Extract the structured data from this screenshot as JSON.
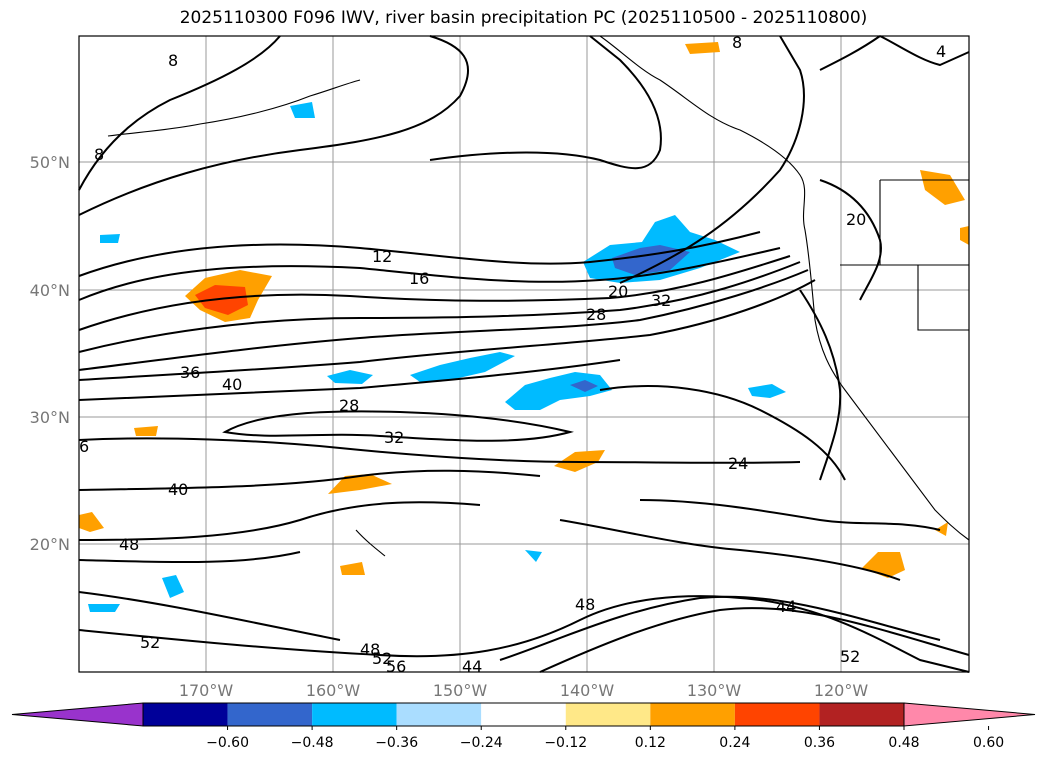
{
  "title": "2025110300 F096 IWV, river basin precipitation PC (2025110500 - 2025110800)",
  "lat_labels": [
    "50°N",
    "40°N",
    "30°N",
    "20°N"
  ],
  "lon_labels": [
    "170°W",
    "160°W",
    "150°W",
    "140°W",
    "130°W",
    "120°W"
  ],
  "contour_labels": [
    "12",
    "16",
    "20",
    "28",
    "32",
    "36",
    "40",
    "28",
    "32",
    "40",
    "48",
    "6",
    "24",
    "48",
    "44",
    "52",
    "52",
    "48",
    "52",
    "56",
    "44",
    "8",
    "8",
    "8",
    "4",
    "20"
  ],
  "colorbar": {
    "colors": [
      "#9933cc",
      "#000099",
      "#3366cc",
      "#00bbff",
      "#aaddff",
      "#ffffff",
      "#ffe888",
      "#ffa000",
      "#ff4400",
      "#b22222",
      "#ff88aa"
    ],
    "tick_labels": [
      "−0.60",
      "−0.48",
      "−0.36",
      "−0.24",
      "−0.12",
      "0.12",
      "0.24",
      "0.36",
      "0.48",
      "0.60"
    ]
  }
}
